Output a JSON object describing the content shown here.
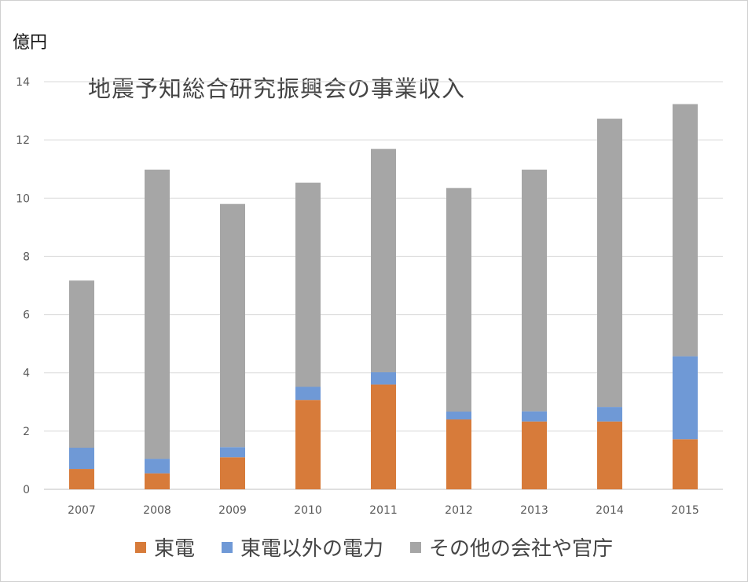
{
  "unit_label": "億円",
  "chart_data": {
    "type": "bar",
    "stacked": true,
    "title": "地震予知総合研究振興会の事業収入",
    "ylabel": "億円",
    "ylim": [
      0,
      14
    ],
    "yticks": [
      0,
      2,
      4,
      6,
      8,
      10,
      12,
      14
    ],
    "grid": true,
    "legend_position": "bottom",
    "categories": [
      "2007",
      "2008",
      "2009",
      "2010",
      "2011",
      "2012",
      "2013",
      "2014",
      "2015"
    ],
    "series": [
      {
        "name": "東電",
        "color": "#d77b3a",
        "values": [
          0.7,
          0.55,
          1.1,
          3.07,
          3.6,
          2.4,
          2.33,
          2.33,
          1.72
        ]
      },
      {
        "name": "東電以外の電力",
        "color": "#6f99d6",
        "values": [
          0.73,
          0.5,
          0.35,
          0.45,
          0.42,
          0.27,
          0.35,
          0.5,
          2.85
        ]
      },
      {
        "name": "その他の会社や官庁",
        "color": "#a6a6a6",
        "values": [
          5.74,
          9.93,
          8.35,
          7.01,
          7.67,
          7.68,
          8.3,
          9.9,
          8.66
        ]
      }
    ]
  }
}
